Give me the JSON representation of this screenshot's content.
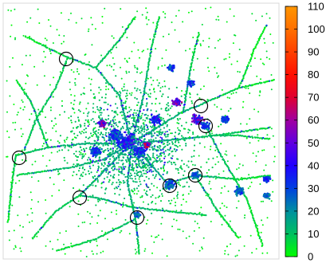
{
  "chart_data": {
    "type": "scatter",
    "title": "",
    "xlabel": "",
    "ylabel": "",
    "description_visible": "points coloured by value using a green-blue-magenta-red-orange colour scale",
    "colorbar": {
      "min": 0,
      "max": 110,
      "ticks": [
        "110",
        "100",
        "90",
        "80",
        "70",
        "60",
        "50",
        "40",
        "30",
        "20",
        "10",
        "0"
      ],
      "colors": [
        {
          "value": 0,
          "color": "#00ff00"
        },
        {
          "value": 10,
          "color": "#00c060"
        },
        {
          "value": 20,
          "color": "#0090a0"
        },
        {
          "value": 30,
          "color": "#0040e0"
        },
        {
          "value": 40,
          "color": "#2000ff"
        },
        {
          "value": 50,
          "color": "#6000e0"
        },
        {
          "value": 60,
          "color": "#a000a0"
        },
        {
          "value": 70,
          "color": "#e00030"
        },
        {
          "value": 80,
          "color": "#ff1000"
        },
        {
          "value": 90,
          "color": "#ff4000"
        },
        {
          "value": 100,
          "color": "#ff7000"
        },
        {
          "value": 110,
          "color": "#ff9600"
        }
      ]
    },
    "grid": false,
    "legend": "colorbar-right",
    "highlighted_locations": 9
  }
}
